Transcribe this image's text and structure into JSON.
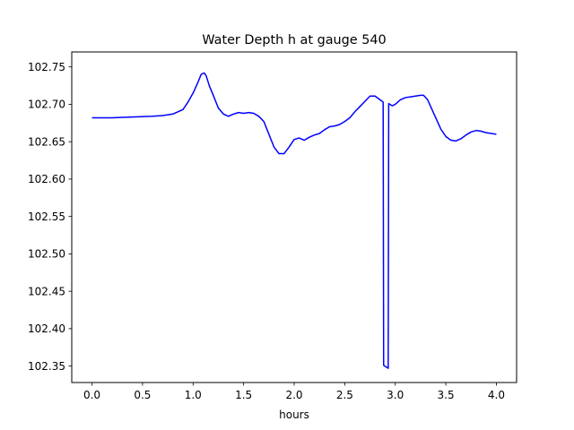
{
  "chart_data": {
    "type": "line",
    "title": "Water Depth h at gauge 540",
    "xlabel": "hours",
    "ylabel": "",
    "xlim": [
      -0.2,
      4.2
    ],
    "ylim": [
      102.328,
      102.77
    ],
    "x_ticks": [
      0.0,
      0.5,
      1.0,
      1.5,
      2.0,
      2.5,
      3.0,
      3.5,
      4.0
    ],
    "x_tick_labels": [
      "0.0",
      "0.5",
      "1.0",
      "1.5",
      "2.0",
      "2.5",
      "3.0",
      "3.5",
      "4.0"
    ],
    "y_ticks": [
      102.35,
      102.4,
      102.45,
      102.5,
      102.55,
      102.6,
      102.65,
      102.7,
      102.75
    ],
    "y_tick_labels": [
      "102.35",
      "102.40",
      "102.45",
      "102.50",
      "102.55",
      "102.60",
      "102.65",
      "102.70",
      "102.75"
    ],
    "grid": false,
    "series": [
      {
        "color": "#0000ff",
        "x": [
          0.0,
          0.2,
          0.4,
          0.6,
          0.7,
          0.8,
          0.9,
          0.95,
          1.0,
          1.05,
          1.08,
          1.11,
          1.13,
          1.16,
          1.2,
          1.25,
          1.3,
          1.35,
          1.4,
          1.45,
          1.5,
          1.55,
          1.6,
          1.65,
          1.7,
          1.75,
          1.8,
          1.85,
          1.9,
          1.95,
          2.0,
          2.05,
          2.1,
          2.15,
          2.2,
          2.25,
          2.3,
          2.35,
          2.4,
          2.45,
          2.5,
          2.55,
          2.6,
          2.65,
          2.7,
          2.75,
          2.8,
          2.83,
          2.86,
          2.88,
          2.885,
          2.93,
          2.935,
          2.97,
          3.0,
          3.05,
          3.1,
          3.15,
          3.2,
          3.25,
          3.28,
          3.32,
          3.35,
          3.4,
          3.45,
          3.5,
          3.55,
          3.6,
          3.65,
          3.7,
          3.75,
          3.8,
          3.85,
          3.9,
          3.95,
          4.0
        ],
        "y": [
          102.682,
          102.682,
          102.683,
          102.684,
          102.685,
          102.687,
          102.693,
          102.703,
          102.715,
          102.73,
          102.74,
          102.742,
          102.738,
          102.725,
          102.712,
          102.695,
          102.687,
          102.684,
          102.687,
          102.689,
          102.688,
          102.689,
          102.688,
          102.684,
          102.677,
          102.66,
          102.643,
          102.634,
          102.634,
          102.643,
          102.653,
          102.655,
          102.652,
          102.656,
          102.659,
          102.661,
          102.666,
          102.67,
          102.671,
          102.673,
          102.677,
          102.682,
          102.69,
          102.697,
          102.704,
          102.711,
          102.711,
          102.708,
          102.705,
          102.703,
          102.351,
          102.347,
          102.701,
          102.698,
          102.7,
          102.706,
          102.709,
          102.71,
          102.711,
          102.712,
          102.712,
          102.706,
          102.697,
          102.682,
          102.667,
          102.657,
          102.652,
          102.651,
          102.654,
          102.659,
          102.663,
          102.665,
          102.664,
          102.662,
          102.661,
          102.66
        ]
      }
    ]
  }
}
